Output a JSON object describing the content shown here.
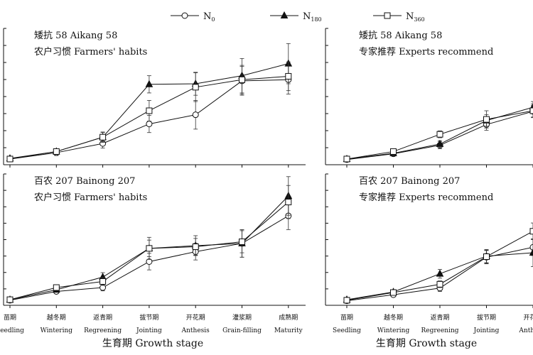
{
  "legend": [
    {
      "key": "n0",
      "label": "N",
      "sub": "0",
      "marker": "circle"
    },
    {
      "key": "n180",
      "label": "N",
      "sub": "180",
      "marker": "triangle"
    },
    {
      "key": "n360",
      "label": "N",
      "sub": "360",
      "marker": "square"
    }
  ],
  "x_axis_title": "生育期 Growth stage",
  "chart_data": [
    {
      "type": "line",
      "title_cn": "矮抗 58 Aikang 58",
      "title_en": "农户习惯 Farmers' habits",
      "categories": [
        "Seedling",
        "Wintering",
        "Regreening",
        "Jointing",
        "Anthesis",
        "Grain-filling",
        "Maturity"
      ],
      "categories_cn": [
        "苗期",
        "越冬期",
        "返青期",
        "拔节期",
        "开花期",
        "灌浆期",
        "成熟期"
      ],
      "ylim": [
        0,
        22
      ],
      "series": [
        {
          "name": "N0",
          "values": [
            0.5,
            1.6,
            3.2,
            6.6,
            8.2,
            14.1,
            14.3
          ],
          "errors": [
            0.3,
            0.5,
            0.8,
            1.5,
            2.5,
            2.5,
            2.5
          ]
        },
        {
          "name": "N180",
          "values": [
            0.6,
            1.8,
            4.3,
            13.5,
            13.6,
            15.0,
            17.1
          ],
          "errors": [
            0.3,
            0.5,
            0.8,
            1.5,
            2.0,
            3.0,
            3.5
          ]
        },
        {
          "name": "N360",
          "values": [
            0.5,
            1.8,
            4.3,
            8.9,
            13.0,
            14.3,
            14.9
          ],
          "errors": [
            0.3,
            0.5,
            0.9,
            1.8,
            2.5,
            2.5,
            2.5
          ]
        }
      ]
    },
    {
      "type": "line",
      "title_cn": "矮抗 58 Aikang 58",
      "title_en": "专家推荐 Experts recommend",
      "categories": [
        "Seedling",
        "Wintering",
        "Regreening",
        "Jointing",
        "Anthesis"
      ],
      "categories_cn": [
        "苗期",
        "越冬期",
        "返青期",
        "拔节期",
        "开花期"
      ],
      "ylim": [
        0,
        22
      ],
      "series": [
        {
          "name": "N0",
          "values": [
            0.4,
            1.4,
            2.9,
            6.5,
            8.8
          ],
          "errors": [
            0.3,
            0.4,
            0.6,
            1.0,
            1.0
          ]
        },
        {
          "name": "N180",
          "values": [
            0.5,
            1.5,
            3.1,
            7.2,
            9.5
          ],
          "errors": [
            0.3,
            0.4,
            0.6,
            1.0,
            1.0
          ]
        },
        {
          "name": "N360",
          "values": [
            0.5,
            1.8,
            4.8,
            7.4,
            8.9
          ],
          "errors": [
            0.3,
            0.4,
            0.6,
            1.5,
            1.2
          ]
        }
      ]
    },
    {
      "type": "line",
      "title_cn": "百农 207 Bainong 207",
      "title_en": "农户习惯 Farmers' habits",
      "categories": [
        "Seedling",
        "Wintering",
        "Regreening",
        "Jointing",
        "Anthesis",
        "Grain-filling",
        "Maturity"
      ],
      "categories_cn": [
        "苗期",
        "越冬期",
        "返青期",
        "拔节期",
        "开花期",
        "灌浆期",
        "成熟期"
      ],
      "ylim": [
        0,
        22
      ],
      "series": [
        {
          "name": "N0",
          "values": [
            0.4,
            2.0,
            2.7,
            7.4,
            9.2,
            10.7,
            15.7
          ],
          "errors": [
            0.3,
            0.4,
            0.6,
            1.5,
            1.5,
            2.5,
            2.5
          ]
        },
        {
          "name": "N180",
          "values": [
            0.5,
            2.3,
            4.6,
            9.8,
            10.3,
            10.7,
            19.3
          ],
          "errors": [
            0.3,
            0.4,
            0.8,
            2.0,
            1.8,
            2.5,
            3.5
          ]
        },
        {
          "name": "N360",
          "values": [
            0.5,
            2.7,
            3.8,
            9.8,
            10.1,
            11.0,
            18.2
          ],
          "errors": [
            0.3,
            0.4,
            0.7,
            1.5,
            1.5,
            2.0,
            3.0
          ]
        }
      ]
    },
    {
      "type": "line",
      "title_cn": "百农 207 Bainong 207",
      "title_en": "专家推荐 Experts recommend",
      "categories": [
        "Seedling",
        "Wintering",
        "Regreening",
        "Jointing",
        "Anthesis"
      ],
      "categories_cn": [
        "苗期",
        "越冬期",
        "返青期",
        "拔节期",
        "开花期"
      ],
      "ylim": [
        0,
        22
      ],
      "series": [
        {
          "name": "N0",
          "values": [
            0.3,
            1.4,
            2.6,
            8.2,
            10.0
          ],
          "errors": [
            0.3,
            0.4,
            0.6,
            1.2,
            1.5
          ]
        },
        {
          "name": "N180",
          "values": [
            0.5,
            1.9,
            5.2,
            8.4,
            9.0
          ],
          "errors": [
            0.3,
            0.4,
            0.8,
            1.2,
            2.5
          ]
        },
        {
          "name": "N360",
          "values": [
            0.4,
            1.8,
            3.3,
            8.3,
            12.9
          ],
          "errors": [
            0.3,
            0.4,
            0.6,
            1.2,
            1.5
          ]
        }
      ]
    }
  ]
}
